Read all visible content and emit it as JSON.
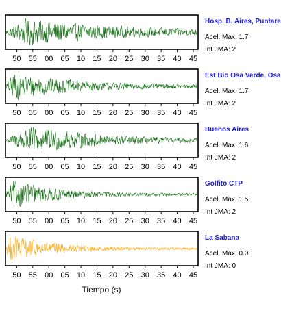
{
  "chart_data": {
    "type": "line",
    "xlabel": "Tiempo (s)",
    "x_tick_labels": [
      "50",
      "55",
      "00",
      "05",
      "10",
      "15",
      "20",
      "25",
      "30",
      "35",
      "40",
      "45"
    ],
    "x_tick_seconds": [
      50,
      55,
      60,
      65,
      70,
      75,
      80,
      85,
      90,
      95,
      100,
      105
    ],
    "xlim": [
      46.5,
      106.5
    ],
    "grid": false,
    "panels": [
      {
        "station": "Hosp. B. Aires, Puntare",
        "acel_label": "Acel. Max. 1.7",
        "jma_label": "Int JMA: 2",
        "acel_max": 1.7,
        "int_jma": 2,
        "color": "#0f6e0f",
        "peak_seconds": 53,
        "amplitude": 0.95,
        "decay": 0.6
      },
      {
        "station": "Est Bio Osa Verde, Osa",
        "acel_label": "Acel. Max. 1.7",
        "jma_label": "Int JMA: 2",
        "acel_max": 1.7,
        "int_jma": 2,
        "color": "#0f6e0f",
        "peak_seconds": 49,
        "amplitude": 0.95,
        "decay": 0.9
      },
      {
        "station": "Buenos Aires",
        "acel_label": "Acel. Max. 1.6",
        "jma_label": "Int JMA: 2",
        "acel_max": 1.6,
        "int_jma": 2,
        "color": "#0f6e0f",
        "peak_seconds": 54,
        "amplitude": 0.95,
        "decay": 0.8
      },
      {
        "station": "Golfito CTP",
        "acel_label": "Acel. Max. 1.5",
        "jma_label": "Int JMA: 2",
        "acel_max": 1.5,
        "int_jma": 2,
        "color": "#0f6e0f",
        "peak_seconds": 49,
        "amplitude": 0.98,
        "decay": 1.4
      },
      {
        "station": "La Sabana",
        "acel_label": "Acel. Max. 0.0",
        "jma_label": "Int JMA: 0",
        "acel_max": 0.0,
        "int_jma": 0,
        "color": "#ffa500",
        "peak_seconds": 48,
        "amplitude": 0.98,
        "decay": 1.5
      }
    ]
  }
}
